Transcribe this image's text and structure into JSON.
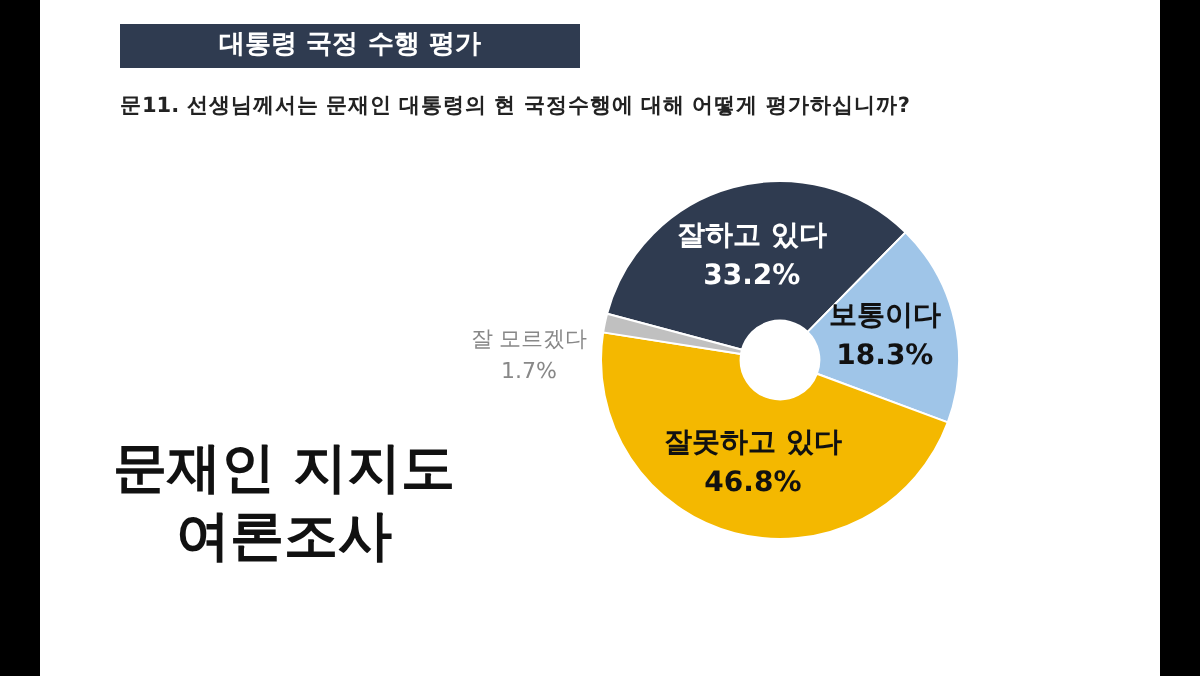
{
  "chart_data": {
    "type": "donut",
    "title": "대통령 국정 수행 평가",
    "subtitle": "문11. 선생님께서는 문재인 대통령의 현 국정수행에 대해 어떻게 평가하십니까?",
    "categories": [
      "잘하고 있다",
      "보통이다",
      "잘못하고 있다",
      "잘 모르겠다"
    ],
    "values": [
      33.2,
      18.3,
      46.8,
      1.7
    ],
    "colors": [
      "#2f3b50",
      "#9fc5e8",
      "#f4b800",
      "#c0c0c0"
    ],
    "value_labels": [
      "33.2%",
      "18.3%",
      "46.8%",
      "1.7%"
    ],
    "annotations": [
      "문재인 지지도 여론조사"
    ],
    "legend": false
  }
}
